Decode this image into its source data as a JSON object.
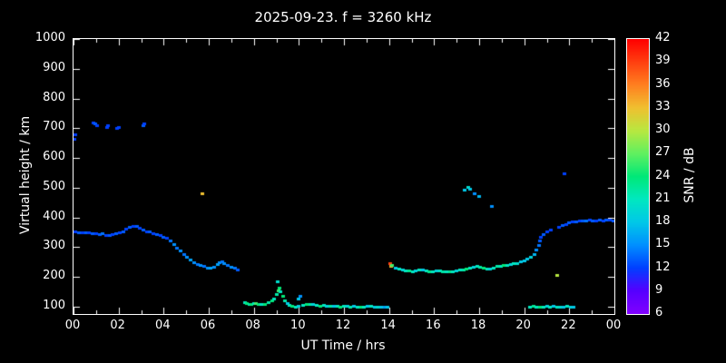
{
  "title": "2025-09-23. f = 3260 kHz",
  "colors": {
    "background": "#000000",
    "foreground": "#ffffff"
  },
  "chart_data": {
    "type": "scatter",
    "title": "2025-09-23. f = 3260 kHz",
    "xlabel": "UT Time / hrs",
    "ylabel": "Virtual height / km",
    "xlim": [
      0,
      24
    ],
    "ylim": [
      75,
      1000
    ],
    "x_tick_values": [
      0,
      2,
      4,
      6,
      8,
      10,
      12,
      14,
      16,
      18,
      20,
      22,
      24
    ],
    "x_tick_labels": [
      "00",
      "02",
      "04",
      "06",
      "08",
      "10",
      "12",
      "14",
      "16",
      "18",
      "20",
      "22",
      "00"
    ],
    "x_minor_ticks": [
      1,
      3,
      5,
      7,
      9,
      11,
      13,
      15,
      17,
      19,
      21,
      23
    ],
    "y_tick_values": [
      100,
      200,
      300,
      400,
      500,
      600,
      700,
      800,
      900,
      1000
    ],
    "grid": false,
    "points_comment": "each point = [UT_hours, virtual_height_km, SNR_dB]",
    "points": [
      [
        0.05,
        665,
        12
      ],
      [
        0.1,
        680,
        12
      ],
      [
        0.9,
        720,
        12
      ],
      [
        0.95,
        715,
        13
      ],
      [
        1.05,
        710,
        12
      ],
      [
        1.5,
        705,
        12
      ],
      [
        1.55,
        710,
        12
      ],
      [
        1.95,
        700,
        12
      ],
      [
        2.0,
        705,
        12
      ],
      [
        3.1,
        710,
        13
      ],
      [
        3.15,
        715,
        12
      ],
      [
        0.1,
        352,
        12
      ],
      [
        0.25,
        350,
        13
      ],
      [
        0.4,
        351,
        12
      ],
      [
        0.55,
        349,
        13
      ],
      [
        0.7,
        350,
        12
      ],
      [
        0.85,
        348,
        13
      ],
      [
        1.0,
        347,
        12
      ],
      [
        1.15,
        344,
        13
      ],
      [
        1.3,
        347,
        14
      ],
      [
        1.45,
        340,
        12
      ],
      [
        1.6,
        342,
        13
      ],
      [
        1.75,
        344,
        12
      ],
      [
        1.9,
        346,
        13
      ],
      [
        2.05,
        350,
        12
      ],
      [
        2.2,
        354,
        13
      ],
      [
        2.35,
        362,
        12
      ],
      [
        2.5,
        368,
        13
      ],
      [
        2.65,
        372,
        12
      ],
      [
        2.8,
        370,
        13
      ],
      [
        2.95,
        364,
        12
      ],
      [
        3.1,
        358,
        13
      ],
      [
        3.25,
        354,
        12
      ],
      [
        3.4,
        352,
        13
      ],
      [
        3.55,
        348,
        12
      ],
      [
        3.7,
        344,
        13
      ],
      [
        3.85,
        340,
        12
      ],
      [
        4.0,
        336,
        13
      ],
      [
        4.15,
        330,
        12
      ],
      [
        4.3,
        322,
        14
      ],
      [
        4.45,
        310,
        15
      ],
      [
        4.6,
        298,
        14
      ],
      [
        4.75,
        288,
        15
      ],
      [
        4.9,
        278,
        14
      ],
      [
        5.05,
        268,
        15
      ],
      [
        5.2,
        258,
        16
      ],
      [
        5.35,
        250,
        15
      ],
      [
        5.5,
        244,
        14
      ],
      [
        5.65,
        240,
        15
      ],
      [
        5.8,
        236,
        14
      ],
      [
        5.95,
        232,
        15
      ],
      [
        6.1,
        230,
        16
      ],
      [
        5.7,
        480,
        33
      ],
      [
        6.25,
        234,
        15
      ],
      [
        6.4,
        244,
        16
      ],
      [
        6.5,
        250,
        15
      ],
      [
        6.6,
        252,
        14
      ],
      [
        6.7,
        246,
        15
      ],
      [
        6.85,
        240,
        14
      ],
      [
        7.0,
        234,
        15
      ],
      [
        7.15,
        230,
        14
      ],
      [
        7.3,
        226,
        13
      ],
      [
        7.6,
        116,
        21
      ],
      [
        7.7,
        112,
        24
      ],
      [
        7.8,
        110,
        22
      ],
      [
        7.9,
        109,
        24
      ],
      [
        8.0,
        111,
        21
      ],
      [
        8.1,
        113,
        26
      ],
      [
        8.2,
        110,
        24
      ],
      [
        8.35,
        108,
        21
      ],
      [
        8.5,
        110,
        24
      ],
      [
        8.65,
        114,
        22
      ],
      [
        8.8,
        120,
        24
      ],
      [
        8.9,
        128,
        21
      ],
      [
        9.0,
        142,
        22
      ],
      [
        9.05,
        185,
        20
      ],
      [
        9.1,
        155,
        26
      ],
      [
        9.15,
        165,
        24
      ],
      [
        9.2,
        150,
        21
      ],
      [
        9.3,
        136,
        24
      ],
      [
        9.4,
        120,
        22
      ],
      [
        9.5,
        112,
        18
      ],
      [
        9.6,
        106,
        21
      ],
      [
        9.7,
        101,
        24
      ],
      [
        9.85,
        99,
        21
      ],
      [
        10.0,
        101,
        19
      ],
      [
        10.0,
        126,
        18
      ],
      [
        10.05,
        136,
        15
      ],
      [
        10.2,
        106,
        21
      ],
      [
        10.35,
        108,
        24
      ],
      [
        10.5,
        110,
        22
      ],
      [
        10.65,
        108,
        19
      ],
      [
        10.8,
        106,
        21
      ],
      [
        10.95,
        104,
        24
      ],
      [
        11.1,
        105,
        21
      ],
      [
        11.25,
        103,
        19
      ],
      [
        11.4,
        104,
        22
      ],
      [
        11.55,
        102,
        18
      ],
      [
        11.7,
        101,
        21
      ],
      [
        11.85,
        100,
        24
      ],
      [
        12.0,
        102,
        21
      ],
      [
        12.15,
        101,
        19
      ],
      [
        12.3,
        100,
        22
      ],
      [
        12.45,
        103,
        18
      ],
      [
        12.6,
        100,
        21
      ],
      [
        12.75,
        99,
        24
      ],
      [
        12.9,
        100,
        21
      ],
      [
        13.05,
        101,
        18
      ],
      [
        13.2,
        102,
        21
      ],
      [
        13.35,
        100,
        18
      ],
      [
        13.5,
        99,
        20
      ],
      [
        13.65,
        98,
        18
      ],
      [
        13.8,
        100,
        16
      ],
      [
        13.95,
        100,
        18
      ],
      [
        14.05,
        246,
        39
      ],
      [
        14.1,
        237,
        34
      ],
      [
        14.15,
        241,
        26
      ],
      [
        14.3,
        231,
        18
      ],
      [
        14.45,
        229,
        21
      ],
      [
        14.6,
        226,
        19
      ],
      [
        14.75,
        223,
        21
      ],
      [
        14.9,
        221,
        23
      ],
      [
        15.05,
        220,
        21
      ],
      [
        15.2,
        222,
        19
      ],
      [
        15.35,
        224,
        21
      ],
      [
        15.5,
        226,
        18
      ],
      [
        15.65,
        221,
        21
      ],
      [
        15.8,
        219,
        23
      ],
      [
        15.95,
        220,
        21
      ],
      [
        16.1,
        221,
        19
      ],
      [
        16.25,
        223,
        21
      ],
      [
        16.4,
        220,
        22
      ],
      [
        16.55,
        219,
        21
      ],
      [
        16.7,
        218,
        23
      ],
      [
        16.85,
        220,
        21
      ],
      [
        17.0,
        222,
        19
      ],
      [
        17.15,
        224,
        21
      ],
      [
        17.3,
        226,
        22
      ],
      [
        17.45,
        229,
        24
      ],
      [
        17.6,
        231,
        21
      ],
      [
        17.75,
        233,
        19
      ],
      [
        17.9,
        236,
        21
      ],
      [
        18.05,
        233,
        22
      ],
      [
        18.2,
        231,
        24
      ],
      [
        18.35,
        229,
        21
      ],
      [
        18.5,
        228,
        19
      ],
      [
        18.65,
        232,
        21
      ],
      [
        18.8,
        236,
        22
      ],
      [
        18.95,
        238,
        21
      ],
      [
        19.1,
        239,
        24
      ],
      [
        19.25,
        241,
        21
      ],
      [
        19.4,
        243,
        19
      ],
      [
        19.55,
        245,
        21
      ],
      [
        19.7,
        247,
        20
      ],
      [
        19.85,
        251,
        18
      ],
      [
        20.0,
        256,
        18
      ],
      [
        17.35,
        492,
        18
      ],
      [
        17.5,
        502,
        20
      ],
      [
        17.6,
        496,
        18
      ],
      [
        17.8,
        482,
        15
      ],
      [
        18.0,
        472,
        17
      ],
      [
        18.55,
        438,
        15
      ],
      [
        20.15,
        262,
        18
      ],
      [
        20.3,
        268,
        19
      ],
      [
        20.45,
        278,
        17
      ],
      [
        20.55,
        292,
        15
      ],
      [
        20.65,
        308,
        14
      ],
      [
        20.7,
        322,
        13
      ],
      [
        20.75,
        335,
        12
      ],
      [
        20.85,
        345,
        13
      ],
      [
        21.0,
        352,
        12
      ],
      [
        21.2,
        360,
        12
      ],
      [
        21.45,
        205,
        30
      ],
      [
        21.8,
        548,
        12
      ],
      [
        21.55,
        368,
        12
      ],
      [
        21.7,
        374,
        13
      ],
      [
        21.85,
        378,
        12
      ],
      [
        22.0,
        382,
        13
      ],
      [
        22.15,
        385,
        12
      ],
      [
        22.3,
        387,
        13
      ],
      [
        22.45,
        388,
        12
      ],
      [
        22.6,
        390,
        13
      ],
      [
        22.75,
        389,
        14
      ],
      [
        22.9,
        391,
        12
      ],
      [
        23.05,
        390,
        13
      ],
      [
        23.2,
        389,
        12
      ],
      [
        23.35,
        391,
        13
      ],
      [
        23.5,
        390,
        12
      ],
      [
        23.65,
        392,
        13
      ],
      [
        23.8,
        391,
        12
      ],
      [
        23.95,
        389,
        13
      ],
      [
        20.25,
        100,
        21
      ],
      [
        20.4,
        101,
        23
      ],
      [
        20.55,
        100,
        21
      ],
      [
        20.7,
        99,
        24
      ],
      [
        20.85,
        100,
        21
      ],
      [
        21.0,
        101,
        19
      ],
      [
        21.15,
        100,
        21
      ],
      [
        21.3,
        102,
        18
      ],
      [
        21.45,
        100,
        21
      ],
      [
        21.6,
        99,
        20
      ],
      [
        21.75,
        100,
        18
      ],
      [
        21.9,
        101,
        21
      ],
      [
        22.05,
        100,
        19
      ],
      [
        22.2,
        100,
        18
      ]
    ]
  },
  "colorbar": {
    "label": "SNR / dB",
    "min": 6,
    "max": 42,
    "tick_values": [
      6,
      9,
      12,
      15,
      18,
      21,
      24,
      27,
      30,
      33,
      36,
      39,
      42
    ],
    "stops": [
      {
        "v": 6,
        "c": "#8000ff"
      },
      {
        "v": 9,
        "c": "#5500ff"
      },
      {
        "v": 12,
        "c": "#0040ff"
      },
      {
        "v": 15,
        "c": "#0090ff"
      },
      {
        "v": 18,
        "c": "#00c8e8"
      },
      {
        "v": 21,
        "c": "#00e8c0"
      },
      {
        "v": 24,
        "c": "#00e878"
      },
      {
        "v": 27,
        "c": "#60f060"
      },
      {
        "v": 30,
        "c": "#b8e840"
      },
      {
        "v": 33,
        "c": "#f0c030"
      },
      {
        "v": 36,
        "c": "#ff8020"
      },
      {
        "v": 39,
        "c": "#ff4010"
      },
      {
        "v": 42,
        "c": "#ff0000"
      }
    ]
  }
}
